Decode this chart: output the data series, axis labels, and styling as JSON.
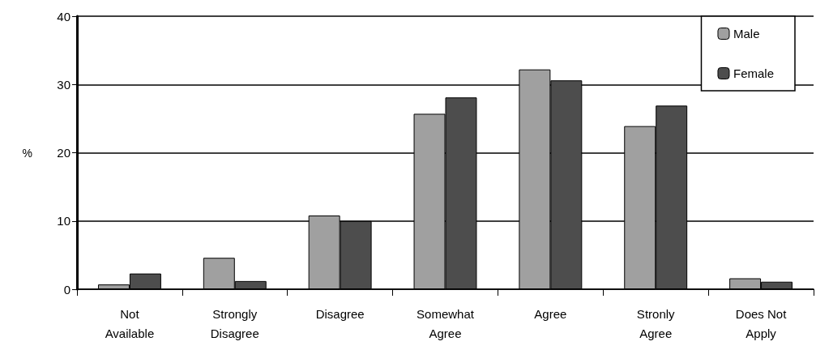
{
  "chart_data": {
    "type": "bar",
    "ylabel": "%",
    "categories": [
      "Not\nAvailable",
      "Strongly\nDisagree",
      "Disagree",
      "Somewhat\nAgree",
      "Agree",
      "Stronly\nAgree",
      "Does Not\nApply"
    ],
    "series": [
      {
        "name": "Male",
        "color": "#a0a0a0",
        "values": [
          0.7,
          4.6,
          10.8,
          25.7,
          32.2,
          23.9,
          1.6
        ]
      },
      {
        "name": "Female",
        "color": "#4d4d4d",
        "values": [
          2.3,
          1.2,
          10.0,
          28.1,
          30.6,
          26.9,
          1.1
        ]
      }
    ],
    "ylim": [
      0,
      40
    ],
    "yticks": [
      0,
      10,
      20,
      30,
      40
    ],
    "grid": "y",
    "legend": "top right"
  }
}
